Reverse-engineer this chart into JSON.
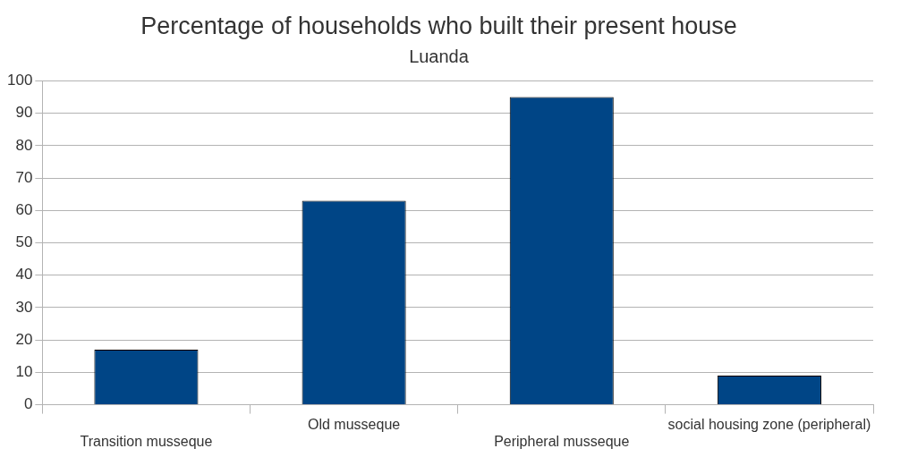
{
  "chart_data": {
    "type": "bar",
    "title": "Percentage of households who built their present house",
    "subtitle": "Luanda",
    "categories": [
      "Transition musseque",
      "Old musseque",
      "Peripheral musseque",
      "social housing zone (peripheral)"
    ],
    "values": [
      17,
      63,
      95,
      9
    ],
    "color": "#004586",
    "ylim": [
      0,
      100
    ],
    "yticks": [
      0,
      10,
      20,
      30,
      40,
      50,
      60,
      70,
      80,
      90,
      100
    ],
    "grid": "y"
  }
}
